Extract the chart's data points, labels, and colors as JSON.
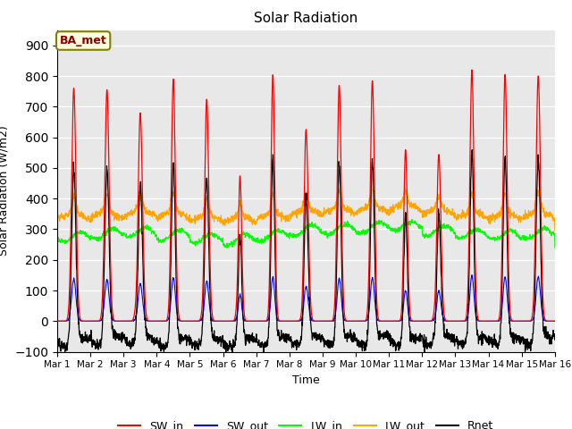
{
  "title": "Solar Radiation",
  "xlabel": "Time",
  "ylabel": "Solar Radiation (W/m2)",
  "ylim": [
    -100,
    950
  ],
  "yticks": [
    -100,
    0,
    100,
    200,
    300,
    400,
    500,
    600,
    700,
    800,
    900
  ],
  "legend_labels": [
    "SW_in",
    "SW_out",
    "LW_in",
    "LW_out",
    "Rnet"
  ],
  "legend_colors": [
    "red",
    "blue",
    "green",
    "orange",
    "black"
  ],
  "annotation": "BA_met",
  "background_color": "#e8e8e8",
  "n_days": 15,
  "points_per_day": 144
}
